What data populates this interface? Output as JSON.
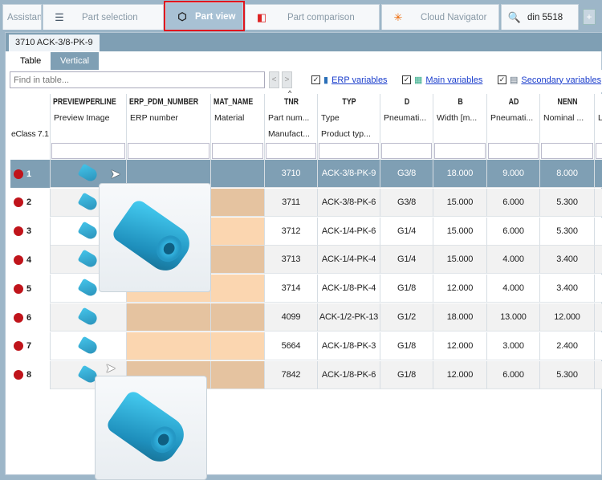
{
  "tabs": [
    {
      "label": "Assistant",
      "icon": "none"
    },
    {
      "label": "Part selection",
      "icon": "stack-icon"
    },
    {
      "label": "Part view",
      "icon": "cube-icon",
      "active": true
    },
    {
      "label": "Part comparison",
      "icon": "compare-icon"
    },
    {
      "label": "Cloud Navigator",
      "icon": "network-icon"
    },
    {
      "label": "din 5518",
      "icon": "search-abc-icon"
    }
  ],
  "add_tab": "+",
  "part_tab": "3710 ACK-3/8-PK-9",
  "view_tabs": [
    "Table",
    "Vertical"
  ],
  "find_placeholder": "Find in table...",
  "nav_prev": "<",
  "nav_next": ">",
  "checks": [
    {
      "label": "ERP variables",
      "checked": true,
      "icon": "erp-icon"
    },
    {
      "label": "Main variables",
      "checked": true,
      "icon": "main-vars-icon"
    },
    {
      "label": "Secondary variables",
      "checked": true,
      "icon": "secondary-vars-icon"
    }
  ],
  "row_header_label": "eClass 7.1",
  "columns": [
    {
      "name": "PREVIEWPERLINE",
      "desc": "Preview Image",
      "desc2": ""
    },
    {
      "name": "ERP_PDM_NUMBER",
      "desc": "ERP number",
      "desc2": ""
    },
    {
      "name": "MAT_NAME",
      "desc": "Material",
      "desc2": ""
    },
    {
      "name": "TNR",
      "desc": "Part num...",
      "desc2": "Manufact...",
      "sorted": "ascending"
    },
    {
      "name": "TYP",
      "desc": "Type",
      "desc2": "Product typ..."
    },
    {
      "name": "D",
      "desc": "Pneumati...",
      "desc2": ""
    },
    {
      "name": "B",
      "desc": "Width [m...",
      "desc2": ""
    },
    {
      "name": "AD",
      "desc": "Pneumati...",
      "desc2": ""
    },
    {
      "name": "NENN",
      "desc": "Nominal ...",
      "desc2": ""
    },
    {
      "name": "",
      "desc": "L",
      "desc2": ""
    }
  ],
  "rows": [
    {
      "n": "1",
      "tnr": "3710",
      "typ": "ACK-3/8-PK-9",
      "d": "G3/8",
      "b": "18.000",
      "ad": "9.000",
      "nenn": "8.000",
      "selected": true
    },
    {
      "n": "2",
      "tnr": "3711",
      "typ": "ACK-3/8-PK-6",
      "d": "G3/8",
      "b": "15.000",
      "ad": "6.000",
      "nenn": "5.300"
    },
    {
      "n": "3",
      "tnr": "3712",
      "typ": "ACK-1/4-PK-6",
      "d": "G1/4",
      "b": "15.000",
      "ad": "6.000",
      "nenn": "5.300"
    },
    {
      "n": "4",
      "tnr": "3713",
      "typ": "ACK-1/4-PK-4",
      "d": "G1/4",
      "b": "15.000",
      "ad": "4.000",
      "nenn": "3.400"
    },
    {
      "n": "5",
      "tnr": "3714",
      "typ": "ACK-1/8-PK-4",
      "d": "G1/8",
      "b": "12.000",
      "ad": "4.000",
      "nenn": "3.400"
    },
    {
      "n": "6",
      "tnr": "4099",
      "typ": "ACK-1/2-PK-13",
      "d": "G1/2",
      "b": "18.000",
      "ad": "13.000",
      "nenn": "12.000"
    },
    {
      "n": "7",
      "tnr": "5664",
      "typ": "ACK-1/8-PK-3",
      "d": "G1/8",
      "b": "12.000",
      "ad": "3.000",
      "nenn": "2.400"
    },
    {
      "n": "8",
      "tnr": "7842",
      "typ": "ACK-1/8-PK-6",
      "d": "G1/8",
      "b": "12.000",
      "ad": "6.000",
      "nenn": "5.300"
    }
  ],
  "colors": {
    "accent_outline": "#e0161e",
    "selected_row": "#7f9fb4",
    "erp_fill": "#fbd6b0",
    "status_dot": "#c0141b"
  }
}
